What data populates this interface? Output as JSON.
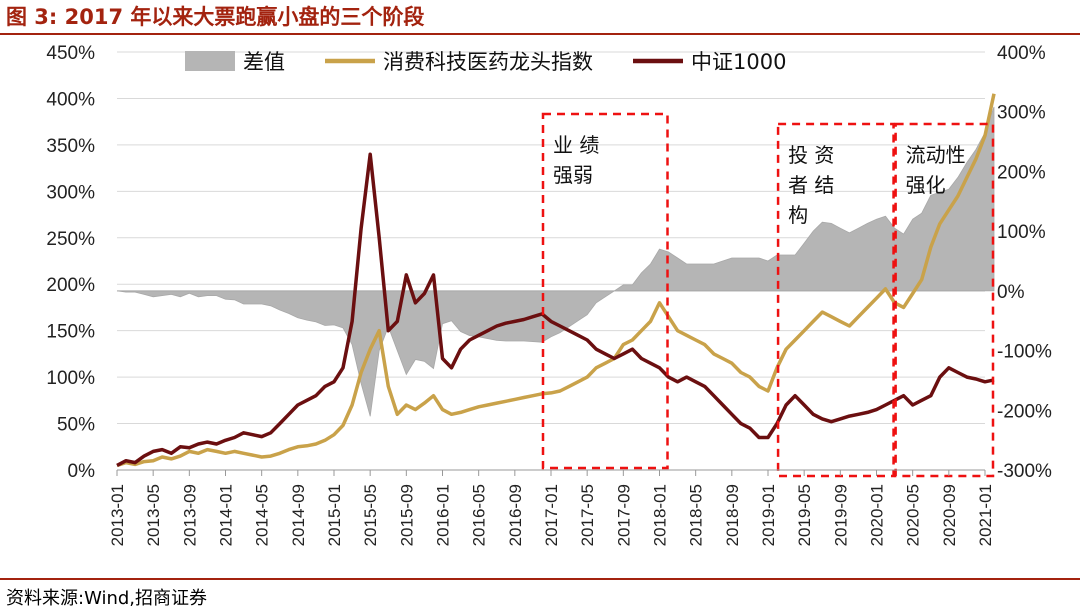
{
  "header": {
    "title": "图 3:  2017 年以来大票跑赢小盘的三个阶段"
  },
  "footer": {
    "source": "资料来源:Wind,招商证券"
  },
  "chart_data": {
    "type": "line",
    "title": "2017 年以来大票跑赢小盘的三个阶段",
    "x_tick_labels": [
      "2013-01",
      "2013-05",
      "2013-09",
      "2014-01",
      "2014-05",
      "2014-09",
      "2015-01",
      "2015-05",
      "2015-09",
      "2016-01",
      "2016-05",
      "2016-09",
      "2017-01",
      "2017-05",
      "2017-09",
      "2018-01",
      "2018-05",
      "2018-09",
      "2019-01",
      "2019-05",
      "2019-09",
      "2020-01",
      "2020-05",
      "2020-09",
      "2021-01"
    ],
    "y_left": {
      "ticks": [
        "0%",
        "50%",
        "100%",
        "150%",
        "200%",
        "250%",
        "300%",
        "350%",
        "400%",
        "450%"
      ],
      "range": [
        0,
        450
      ]
    },
    "y_right": {
      "ticks": [
        "-300%",
        "-200%",
        "-100%",
        "0%",
        "100%",
        "200%",
        "300%",
        "400%"
      ],
      "range": [
        -300,
        400
      ]
    },
    "legend": {
      "position": "top",
      "entries": [
        "差值",
        "消费科技医药龙头指数",
        "中证1000"
      ]
    },
    "series": [
      {
        "name": "消费科技医药龙头指数",
        "axis": "left",
        "color": "#c9a24a",
        "x": [
          "2013-01",
          "2013-02",
          "2013-03",
          "2013-04",
          "2013-05",
          "2013-06",
          "2013-07",
          "2013-08",
          "2013-09",
          "2013-10",
          "2013-11",
          "2013-12",
          "2014-01",
          "2014-02",
          "2014-03",
          "2014-04",
          "2014-05",
          "2014-06",
          "2014-07",
          "2014-08",
          "2014-09",
          "2014-10",
          "2014-11",
          "2014-12",
          "2015-01",
          "2015-02",
          "2015-03",
          "2015-04",
          "2015-05",
          "2015-06",
          "2015-07",
          "2015-08",
          "2015-09",
          "2015-10",
          "2015-11",
          "2015-12",
          "2016-01",
          "2016-02",
          "2016-03",
          "2016-04",
          "2016-05",
          "2016-06",
          "2016-07",
          "2016-08",
          "2016-09",
          "2016-10",
          "2016-11",
          "2016-12",
          "2017-01",
          "2017-02",
          "2017-03",
          "2017-04",
          "2017-05",
          "2017-06",
          "2017-07",
          "2017-08",
          "2017-09",
          "2017-10",
          "2017-11",
          "2017-12",
          "2018-01",
          "2018-02",
          "2018-03",
          "2018-04",
          "2018-05",
          "2018-06",
          "2018-07",
          "2018-08",
          "2018-09",
          "2018-10",
          "2018-11",
          "2018-12",
          "2019-01",
          "2019-02",
          "2019-03",
          "2019-04",
          "2019-05",
          "2019-06",
          "2019-07",
          "2019-08",
          "2019-09",
          "2019-10",
          "2019-11",
          "2019-12",
          "2020-01",
          "2020-02",
          "2020-03",
          "2020-04",
          "2020-05",
          "2020-06",
          "2020-07",
          "2020-08",
          "2020-09",
          "2020-10",
          "2020-11",
          "2020-12",
          "2021-01",
          "2021-02"
        ],
        "values": [
          5,
          8,
          6,
          9,
          10,
          14,
          12,
          15,
          20,
          18,
          22,
          20,
          18,
          20,
          18,
          16,
          14,
          15,
          18,
          22,
          25,
          26,
          28,
          32,
          38,
          48,
          70,
          105,
          130,
          150,
          90,
          60,
          70,
          65,
          72,
          80,
          65,
          60,
          62,
          65,
          68,
          70,
          72,
          74,
          76,
          78,
          80,
          82,
          83,
          85,
          90,
          95,
          100,
          110,
          115,
          120,
          135,
          140,
          150,
          160,
          180,
          165,
          150,
          145,
          140,
          135,
          125,
          120,
          115,
          105,
          100,
          90,
          85,
          110,
          130,
          140,
          150,
          160,
          170,
          165,
          160,
          155,
          165,
          175,
          185,
          195,
          180,
          175,
          190,
          205,
          240,
          265,
          280,
          295,
          315,
          335,
          360,
          405
        ]
      },
      {
        "name": "中证1000",
        "axis": "left",
        "color": "#6b0f10",
        "x": [
          "2013-01",
          "2013-02",
          "2013-03",
          "2013-04",
          "2013-05",
          "2013-06",
          "2013-07",
          "2013-08",
          "2013-09",
          "2013-10",
          "2013-11",
          "2013-12",
          "2014-01",
          "2014-02",
          "2014-03",
          "2014-04",
          "2014-05",
          "2014-06",
          "2014-07",
          "2014-08",
          "2014-09",
          "2014-10",
          "2014-11",
          "2014-12",
          "2015-01",
          "2015-02",
          "2015-03",
          "2015-04",
          "2015-05",
          "2015-06",
          "2015-07",
          "2015-08",
          "2015-09",
          "2015-10",
          "2015-11",
          "2015-12",
          "2016-01",
          "2016-02",
          "2016-03",
          "2016-04",
          "2016-05",
          "2016-06",
          "2016-07",
          "2016-08",
          "2016-09",
          "2016-10",
          "2016-11",
          "2016-12",
          "2017-01",
          "2017-02",
          "2017-03",
          "2017-04",
          "2017-05",
          "2017-06",
          "2017-07",
          "2017-08",
          "2017-09",
          "2017-10",
          "2017-11",
          "2017-12",
          "2018-01",
          "2018-02",
          "2018-03",
          "2018-04",
          "2018-05",
          "2018-06",
          "2018-07",
          "2018-08",
          "2018-09",
          "2018-10",
          "2018-11",
          "2018-12",
          "2019-01",
          "2019-02",
          "2019-03",
          "2019-04",
          "2019-05",
          "2019-06",
          "2019-07",
          "2019-08",
          "2019-09",
          "2019-10",
          "2019-11",
          "2019-12",
          "2020-01",
          "2020-02",
          "2020-03",
          "2020-04",
          "2020-05",
          "2020-06",
          "2020-07",
          "2020-08",
          "2020-09",
          "2020-10",
          "2020-11",
          "2020-12",
          "2021-01",
          "2021-02"
        ],
        "values": [
          5,
          10,
          8,
          15,
          20,
          22,
          18,
          25,
          24,
          28,
          30,
          28,
          32,
          35,
          40,
          38,
          36,
          40,
          50,
          60,
          70,
          75,
          80,
          90,
          95,
          110,
          160,
          260,
          340,
          250,
          150,
          160,
          210,
          180,
          190,
          210,
          120,
          110,
          130,
          140,
          145,
          150,
          155,
          158,
          160,
          162,
          165,
          168,
          160,
          155,
          150,
          145,
          140,
          130,
          125,
          120,
          125,
          130,
          120,
          115,
          110,
          100,
          95,
          100,
          95,
          90,
          80,
          70,
          60,
          50,
          45,
          35,
          35,
          50,
          70,
          80,
          70,
          60,
          55,
          52,
          55,
          58,
          60,
          62,
          65,
          70,
          75,
          80,
          70,
          75,
          80,
          100,
          110,
          105,
          100,
          98,
          95,
          97
        ]
      },
      {
        "name": "差值",
        "axis": "right",
        "color": "#b5b5b5",
        "x": [
          "2013-01",
          "2013-02",
          "2013-03",
          "2013-04",
          "2013-05",
          "2013-06",
          "2013-07",
          "2013-08",
          "2013-09",
          "2013-10",
          "2013-11",
          "2013-12",
          "2014-01",
          "2014-02",
          "2014-03",
          "2014-04",
          "2014-05",
          "2014-06",
          "2014-07",
          "2014-08",
          "2014-09",
          "2014-10",
          "2014-11",
          "2014-12",
          "2015-01",
          "2015-02",
          "2015-03",
          "2015-04",
          "2015-05",
          "2015-06",
          "2015-07",
          "2015-08",
          "2015-09",
          "2015-10",
          "2015-11",
          "2015-12",
          "2016-01",
          "2016-02",
          "2016-03",
          "2016-04",
          "2016-05",
          "2016-06",
          "2016-07",
          "2016-08",
          "2016-09",
          "2016-10",
          "2016-11",
          "2016-12",
          "2017-01",
          "2017-02",
          "2017-03",
          "2017-04",
          "2017-05",
          "2017-06",
          "2017-07",
          "2017-08",
          "2017-09",
          "2017-10",
          "2017-11",
          "2017-12",
          "2018-01",
          "2018-02",
          "2018-03",
          "2018-04",
          "2018-05",
          "2018-06",
          "2018-07",
          "2018-08",
          "2018-09",
          "2018-10",
          "2018-11",
          "2018-12",
          "2019-01",
          "2019-02",
          "2019-03",
          "2019-04",
          "2019-05",
          "2019-06",
          "2019-07",
          "2019-08",
          "2019-09",
          "2019-10",
          "2019-11",
          "2019-12",
          "2020-01",
          "2020-02",
          "2020-03",
          "2020-04",
          "2020-05",
          "2020-06",
          "2020-07",
          "2020-08",
          "2020-09",
          "2020-10",
          "2020-11",
          "2020-12",
          "2021-01",
          "2021-02"
        ],
        "values": [
          0,
          -2,
          -2,
          -6,
          -10,
          -8,
          -6,
          -10,
          -4,
          -10,
          -8,
          -8,
          -14,
          -15,
          -22,
          -22,
          -22,
          -25,
          -32,
          -38,
          -45,
          -49,
          -52,
          -58,
          -57,
          -62,
          -90,
          -155,
          -210,
          -100,
          -60,
          -100,
          -140,
          -115,
          -118,
          -130,
          -55,
          -50,
          -68,
          -75,
          -77,
          -80,
          -83,
          -84,
          -84,
          -84,
          -85,
          -86,
          -77,
          -70,
          -60,
          -50,
          -40,
          -20,
          -10,
          0,
          10,
          10,
          30,
          45,
          70,
          65,
          55,
          45,
          45,
          45,
          45,
          50,
          55,
          55,
          55,
          55,
          50,
          60,
          60,
          60,
          80,
          100,
          115,
          113,
          105,
          97,
          105,
          113,
          120,
          125,
          105,
          95,
          120,
          130,
          160,
          165,
          170,
          190,
          215,
          237,
          265,
          308
        ]
      }
    ],
    "annotations": [
      {
        "label_lines": [
          "业 绩",
          "强弱"
        ],
        "period": [
          "2017-01",
          "2018-01"
        ]
      },
      {
        "label_lines": [
          "投 资",
          "者 结",
          "构"
        ],
        "period": [
          "2019-03",
          "2020-02"
        ]
      },
      {
        "label_lines": [
          "流动性",
          "强化"
        ],
        "period": [
          "2020-04",
          "2021-01"
        ]
      }
    ],
    "grid": true
  }
}
